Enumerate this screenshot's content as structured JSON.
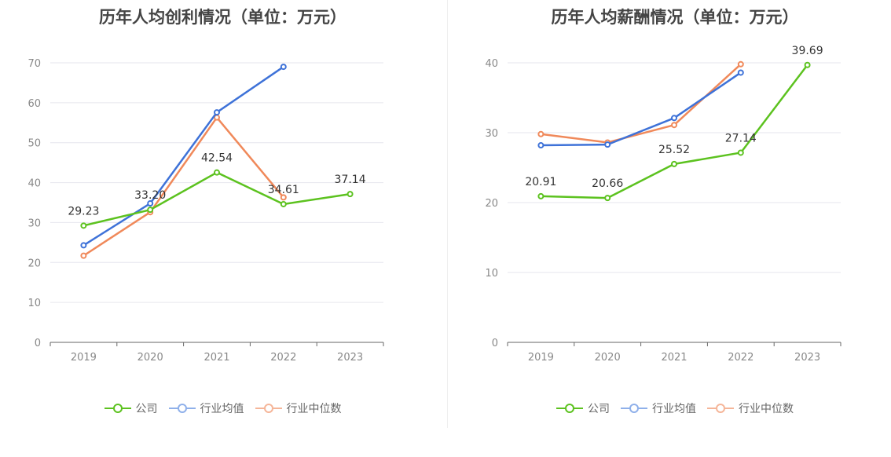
{
  "charts": [
    {
      "title": "历年人均创利情况（单位：万元）",
      "legend": [
        "公司",
        "行业均值",
        "行业中位数"
      ]
    },
    {
      "title": "历年人均薪酬情况（单位：万元）",
      "legend": [
        "公司",
        "行业均值",
        "行业中位数"
      ]
    }
  ],
  "chart_data": [
    {
      "type": "line",
      "title": "历年人均创利情况（单位：万元）",
      "xlabel": "",
      "ylabel": "",
      "categories": [
        "2019",
        "2020",
        "2021",
        "2022",
        "2023"
      ],
      "ylim": [
        0,
        70
      ],
      "yticks": [
        0,
        10,
        20,
        30,
        40,
        50,
        60,
        70
      ],
      "grid": true,
      "legend_position": "bottom",
      "series": [
        {
          "name": "公司",
          "color": "#5cc21f",
          "values": [
            29.23,
            33.2,
            42.54,
            34.61,
            37.14
          ],
          "labels": [
            "29.23",
            "33.20",
            "42.54",
            "34.61",
            "37.14"
          ]
        },
        {
          "name": "行业均值",
          "color": "#3e72d8",
          "values": [
            24.3,
            34.8,
            57.6,
            69.0,
            null
          ]
        },
        {
          "name": "行业中位数",
          "color": "#f0895a",
          "values": [
            21.7,
            32.6,
            56.3,
            36.3,
            null
          ]
        }
      ]
    },
    {
      "type": "line",
      "title": "历年人均薪酬情况（单位：万元）",
      "xlabel": "",
      "ylabel": "",
      "categories": [
        "2019",
        "2020",
        "2021",
        "2022",
        "2023"
      ],
      "ylim": [
        0,
        40
      ],
      "yticks": [
        0,
        10,
        20,
        30,
        40
      ],
      "grid": true,
      "legend_position": "bottom",
      "series": [
        {
          "name": "公司",
          "color": "#5cc21f",
          "values": [
            20.91,
            20.66,
            25.52,
            27.14,
            39.69
          ],
          "labels": [
            "20.91",
            "20.66",
            "25.52",
            "27.14",
            "39.69"
          ]
        },
        {
          "name": "行业均值",
          "color": "#3e72d8",
          "values": [
            28.2,
            28.3,
            32.1,
            38.6,
            null
          ]
        },
        {
          "name": "行业中位数",
          "color": "#f0895a",
          "values": [
            29.8,
            28.6,
            31.1,
            39.8,
            null
          ]
        }
      ]
    }
  ]
}
